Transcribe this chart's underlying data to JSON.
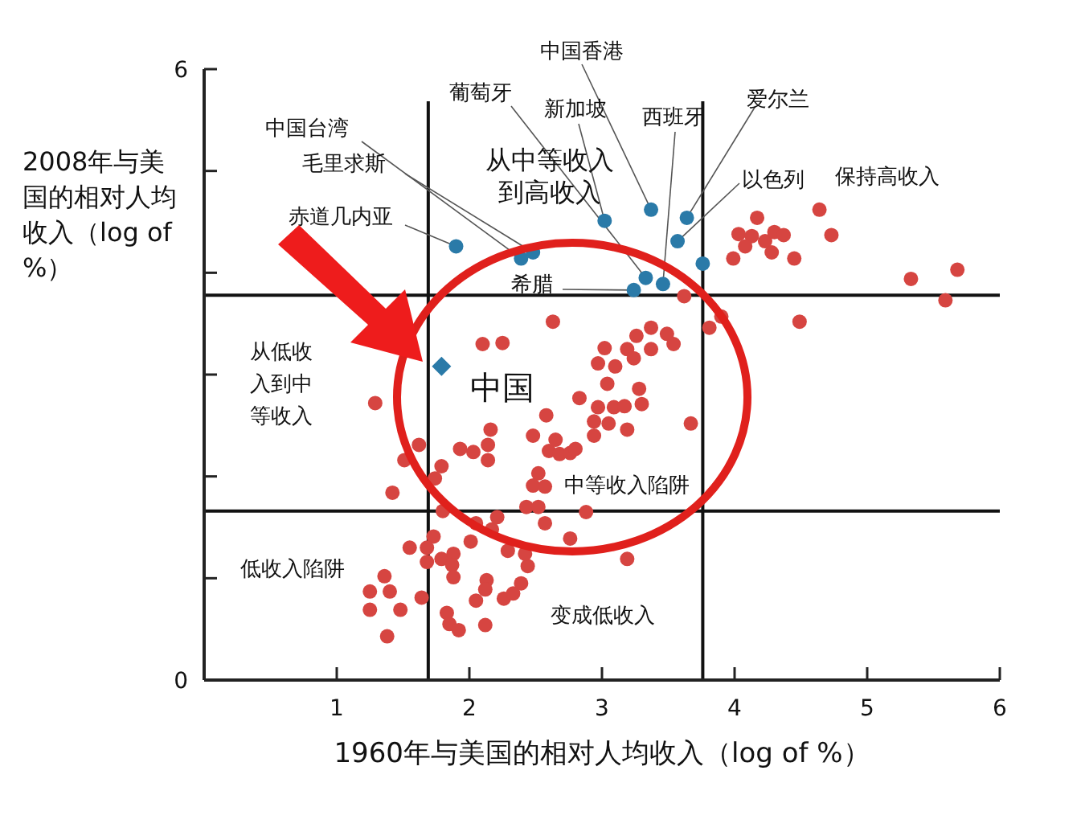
{
  "chart_data": {
    "type": "scatter",
    "xlabel": "1960年与美国的相对人均收入（log of %）",
    "ylabel": "2008年与美国的相对人均收入（log of %）",
    "xlim": [
      0,
      6
    ],
    "xticks": [
      1,
      2,
      3,
      4,
      5,
      6
    ],
    "ylim": [
      0,
      6
    ],
    "yticks": [
      0,
      {
        "value": 1,
        "label": null
      },
      {
        "value": 2,
        "label": null
      },
      {
        "value": 3,
        "label": null
      },
      {
        "value": 4,
        "label": null
      },
      {
        "value": 5,
        "label": null
      },
      6
    ],
    "grid": false,
    "ref_lines": [
      {
        "axis": "x",
        "value": 1.69,
        "label": null,
        "color": "#111111"
      },
      {
        "axis": "x",
        "value": 3.76,
        "label": null,
        "color": "#111111"
      },
      {
        "axis": "y",
        "value": 3.78,
        "label": null,
        "color": "#111111"
      },
      {
        "axis": "y",
        "value": 1.66,
        "label": null,
        "color": "#111111"
      }
    ],
    "series": [
      {
        "color": "#d64541",
        "marker": "circle",
        "x": [
          2.63,
          2.1,
          2.25,
          1.29,
          1.62,
          1.51,
          1.79,
          1.74,
          1.42,
          1.93,
          2.03,
          2.16,
          2.14,
          2.14,
          2.48,
          2.58,
          2.65,
          2.6,
          2.68,
          2.76,
          2.8,
          2.83,
          2.52,
          2.48,
          2.57,
          2.43,
          2.52,
          2.57,
          2.76,
          2.88,
          3.02,
          3.19,
          3.26,
          3.37,
          3.49,
          3.54,
          3.37,
          3.24,
          2.97,
          3.1,
          3.04,
          2.97,
          3.09,
          3.17,
          3.3,
          3.28,
          2.94,
          3.05,
          3.19,
          2.94,
          3.67,
          3.62,
          3.81,
          3.9,
          4.49,
          5.33,
          5.59,
          3.19,
          2.05,
          2.17,
          2.21,
          2.01,
          1.8,
          1.73,
          1.68,
          1.68,
          1.79,
          1.88,
          1.87,
          1.88,
          1.55,
          1.36,
          1.25,
          1.4,
          1.25,
          1.48,
          1.38,
          1.64,
          1.83,
          1.85,
          1.92,
          2.12,
          2.05,
          2.13,
          2.12,
          2.26,
          2.33,
          2.39,
          2.44,
          2.29,
          2.42,
          4.17,
          4.03,
          4.13,
          4.08,
          4.23,
          4.3,
          4.37,
          4.28,
          3.99,
          4.45,
          4.64,
          4.73,
          5.68
        ],
        "values": [
          3.52,
          3.3,
          3.31,
          2.72,
          2.31,
          2.16,
          2.1,
          1.98,
          1.84,
          2.27,
          2.24,
          2.46,
          2.31,
          2.16,
          2.4,
          2.6,
          2.36,
          2.25,
          2.22,
          2.23,
          2.27,
          2.77,
          2.03,
          1.91,
          1.9,
          1.7,
          1.7,
          1.54,
          1.39,
          1.65,
          3.26,
          3.25,
          3.38,
          3.46,
          3.4,
          3.3,
          3.25,
          3.16,
          3.11,
          3.08,
          2.91,
          2.68,
          2.68,
          2.69,
          2.71,
          2.86,
          2.54,
          2.52,
          2.46,
          2.4,
          2.52,
          3.77,
          3.46,
          3.57,
          3.52,
          3.94,
          3.73,
          1.19,
          1.54,
          1.48,
          1.6,
          1.36,
          1.66,
          1.41,
          1.3,
          1.16,
          1.19,
          1.24,
          1.13,
          1.01,
          1.3,
          1.02,
          0.87,
          0.87,
          0.69,
          0.69,
          0.43,
          0.81,
          0.66,
          0.55,
          0.49,
          0.54,
          0.78,
          0.98,
          0.89,
          0.8,
          0.85,
          0.95,
          1.12,
          1.27,
          1.24,
          4.54,
          4.38,
          4.36,
          4.26,
          4.31,
          4.4,
          4.37,
          4.2,
          4.14,
          4.14,
          4.62,
          4.37,
          4.03
        ]
      },
      {
        "color": "#2a7aa8",
        "marker": "circle",
        "x": [
          1.9,
          2.39,
          2.48,
          3.02,
          3.37,
          3.64,
          3.57,
          3.76,
          3.33,
          3.46,
          3.24
        ],
        "values": [
          4.26,
          4.14,
          4.2,
          4.51,
          4.62,
          4.54,
          4.31,
          4.09,
          3.95,
          3.89,
          3.83
        ]
      },
      {
        "color": "#2a7aa8",
        "marker": "diamond",
        "x": [
          1.79
        ],
        "values": [
          3.08
        ]
      }
    ],
    "annotations": [
      {
        "text": "中国香港",
        "x": 3.37,
        "y": 4.62
      },
      {
        "text": "葡萄牙",
        "x": 3.33,
        "y": 3.95
      },
      {
        "text": "新加坡",
        "x": 3.02,
        "y": 4.51
      },
      {
        "text": "西班牙",
        "x": 3.46,
        "y": 3.89
      },
      {
        "text": "爱尔兰",
        "x": 3.64,
        "y": 4.54
      },
      {
        "text": "中国台湾",
        "x": 2.39,
        "y": 4.14
      },
      {
        "text": "毛里求斯",
        "x": 2.48,
        "y": 4.2
      },
      {
        "text": "赤道几内亚",
        "x": 1.9,
        "y": 4.26
      },
      {
        "text": "以色列",
        "x": 3.57,
        "y": 4.31
      },
      {
        "text": "希腊",
        "x": 3.24,
        "y": 3.83
      },
      {
        "text": "中国",
        "x": 1.79,
        "y": 3.08
      },
      "从中等收入到高收入",
      "保持高收入",
      "从低收入到中等收入",
      "中等收入陷阱",
      "低收入陷阱",
      "变成低收入"
    ]
  }
}
